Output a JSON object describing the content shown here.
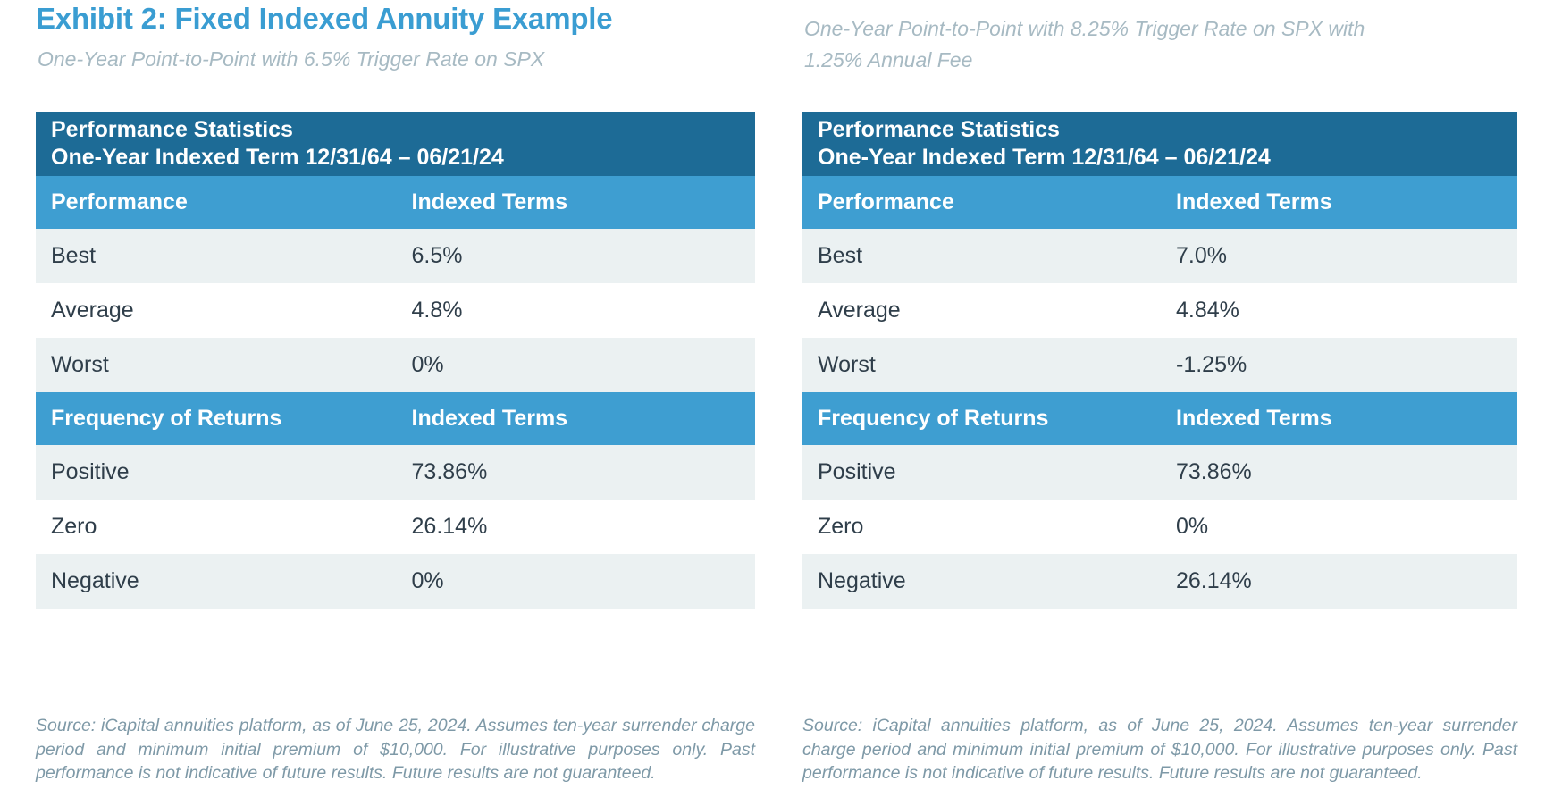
{
  "page": {
    "title": "Exhibit 2: Fixed Indexed Annuity Example"
  },
  "colors": {
    "title-blue": "#3a9dd2",
    "header-dark": "#1d6b96",
    "header-blue": "#3e9ed1",
    "row-gray": "#ebf1f2",
    "row-white": "#ffffff",
    "cell-text": "#2f3e4a",
    "subtitle-gray": "#a7bac3",
    "source-gray": "#7e99a7",
    "divider": "#a9b6bc"
  },
  "panels": [
    {
      "subtitle": "One-Year Point-to-Point with 6.5% Trigger Rate on SPX",
      "table": {
        "title_line1": "Performance Statistics",
        "title_line2": "One-Year Indexed Term 12/31/64 – 06/21/24",
        "sections": [
          {
            "label": "Performance",
            "value_header": "Indexed Terms",
            "rows": [
              {
                "label": "Best",
                "value": "6.5%"
              },
              {
                "label": "Average",
                "value": "4.8%"
              },
              {
                "label": "Worst",
                "value": "0%"
              }
            ]
          },
          {
            "label": "Frequency of Returns",
            "value_header": "Indexed Terms",
            "rows": [
              {
                "label": "Positive",
                "value": "73.86%"
              },
              {
                "label": "Zero",
                "value": "26.14%"
              },
              {
                "label": "Negative",
                "value": "0%"
              }
            ]
          }
        ]
      },
      "source": "Source: iCapital annuities platform, as of June 25, 2024. Assumes ten-year surrender charge period and minimum initial premium of $10,000. For illustrative purposes only. Past performance is not indicative of future results. Future results are not guaranteed."
    },
    {
      "subtitle": "One-Year Point-to-Point with 8.25% Trigger Rate on SPX with\n1.25% Annual Fee",
      "table": {
        "title_line1": "Performance Statistics",
        "title_line2": "One-Year Indexed Term 12/31/64 – 06/21/24",
        "sections": [
          {
            "label": "Performance",
            "value_header": "Indexed Terms",
            "rows": [
              {
                "label": "Best",
                "value": "7.0%"
              },
              {
                "label": "Average",
                "value": "4.84%"
              },
              {
                "label": "Worst",
                "value": "-1.25%"
              }
            ]
          },
          {
            "label": "Frequency of Returns",
            "value_header": "Indexed Terms",
            "rows": [
              {
                "label": "Positive",
                "value": "73.86%"
              },
              {
                "label": "Zero",
                "value": "0%"
              },
              {
                "label": "Negative",
                "value": "26.14%"
              }
            ]
          }
        ]
      },
      "source": "Source: iCapital annuities platform, as of June 25, 2024. Assumes ten-year surrender charge period and minimum initial premium of $10,000. For illustrative purposes only. Past performance is not indicative of future results. Future results are not guaranteed."
    }
  ],
  "chart_data": [
    {
      "type": "table",
      "title": "Performance Statistics One-Year Indexed Term 12/31/64 – 06/21/24 (One-Year Point-to-Point with 6.5% Trigger Rate on SPX)",
      "categories": [
        "Best",
        "Average",
        "Worst",
        "Positive",
        "Zero",
        "Negative"
      ],
      "values": [
        6.5,
        4.8,
        0,
        73.86,
        26.14,
        0
      ],
      "unit": "%"
    },
    {
      "type": "table",
      "title": "Performance Statistics One-Year Indexed Term 12/31/64 – 06/21/24 (One-Year Point-to-Point with 8.25% Trigger Rate on SPX with 1.25% Annual Fee)",
      "categories": [
        "Best",
        "Average",
        "Worst",
        "Positive",
        "Zero",
        "Negative"
      ],
      "values": [
        7.0,
        4.84,
        -1.25,
        73.86,
        0,
        26.14
      ],
      "unit": "%"
    }
  ]
}
